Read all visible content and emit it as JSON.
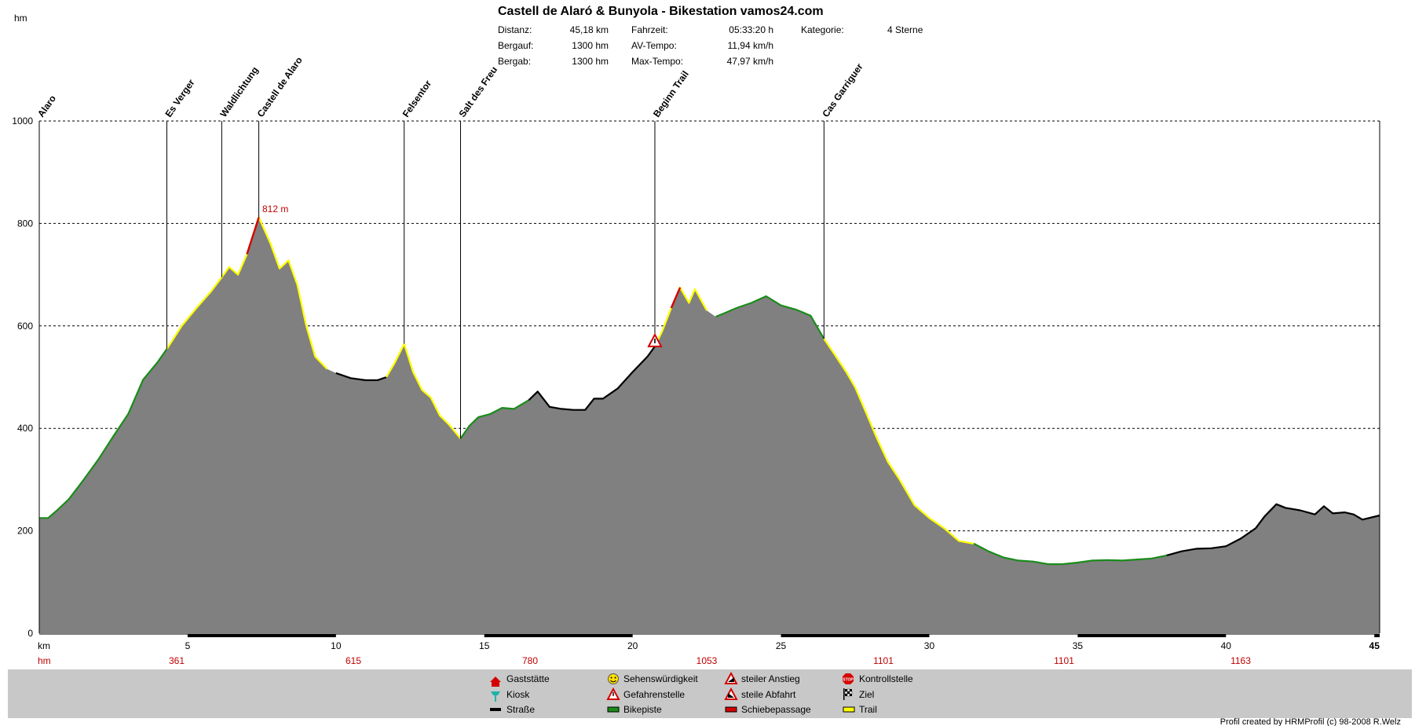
{
  "header": {
    "title": "Castell de Alaró & Bunyola - Bikestation vamos24.com",
    "y_unit": "hm",
    "x_unit": "km",
    "hm_row_label": "hm",
    "stats": [
      {
        "label": "Distanz:",
        "value": "45,18 km"
      },
      {
        "label": "Bergauf:",
        "value": "1300 hm"
      },
      {
        "label": "Bergab:",
        "value": "1300 hm"
      },
      {
        "label": "Fahrzeit:",
        "value": "05:33:20 h"
      },
      {
        "label": "AV-Tempo:",
        "value": "11,94 km/h"
      },
      {
        "label": "Max-Tempo:",
        "value": "47,97 km/h"
      },
      {
        "label": "Kategorie:",
        "value": "4 Sterne"
      }
    ]
  },
  "chart_data": {
    "type": "area",
    "xlabel": "km",
    "ylabel": "hm",
    "xlim": [
      0,
      45.18
    ],
    "ylim": [
      0,
      1000
    ],
    "grid": true,
    "yticks": [
      0,
      200,
      400,
      600,
      800,
      1000
    ],
    "xticks": [
      5,
      10,
      15,
      20,
      25,
      30,
      35,
      40,
      45
    ],
    "hm_per_5km": [
      "361",
      "615",
      "780",
      "1053",
      "1101",
      "1101",
      "1163"
    ],
    "max_label": "812 m",
    "max_point": {
      "x": 7.4,
      "y": 812
    },
    "waypoints": [
      {
        "name": "Alaro",
        "km": 0.0
      },
      {
        "name": "Es Verger",
        "km": 4.3
      },
      {
        "name": "Waldlichtung",
        "km": 6.15
      },
      {
        "name": "Castell de Alaro",
        "km": 7.4
      },
      {
        "name": "Felsentor",
        "km": 12.3
      },
      {
        "name": "Salt des Freu",
        "km": 14.2
      },
      {
        "name": "Beginn Trail",
        "km": 20.75
      },
      {
        "name": "Cas Garriguer",
        "km": 26.45
      }
    ],
    "profile": [
      [
        0,
        225
      ],
      [
        0.3,
        225
      ],
      [
        0.6,
        240
      ],
      [
        1.0,
        262
      ],
      [
        1.5,
        300
      ],
      [
        2.0,
        340
      ],
      [
        2.5,
        385
      ],
      [
        3.0,
        428
      ],
      [
        3.5,
        495
      ],
      [
        4.0,
        530
      ],
      [
        4.3,
        555
      ],
      [
        4.8,
        600
      ],
      [
        5.3,
        635
      ],
      [
        5.8,
        668
      ],
      [
        6.15,
        695
      ],
      [
        6.4,
        715
      ],
      [
        6.7,
        700
      ],
      [
        7.0,
        740
      ],
      [
        7.4,
        812
      ],
      [
        7.8,
        760
      ],
      [
        8.1,
        712
      ],
      [
        8.4,
        728
      ],
      [
        8.7,
        680
      ],
      [
        9.0,
        600
      ],
      [
        9.3,
        540
      ],
      [
        9.7,
        516
      ],
      [
        10.0,
        508
      ],
      [
        10.5,
        498
      ],
      [
        11.0,
        494
      ],
      [
        11.4,
        494
      ],
      [
        11.7,
        500
      ],
      [
        12.0,
        530
      ],
      [
        12.3,
        565
      ],
      [
        12.6,
        510
      ],
      [
        12.9,
        475
      ],
      [
        13.2,
        460
      ],
      [
        13.5,
        425
      ],
      [
        13.8,
        408
      ],
      [
        14.2,
        380
      ],
      [
        14.5,
        405
      ],
      [
        14.8,
        422
      ],
      [
        15.2,
        428
      ],
      [
        15.6,
        440
      ],
      [
        16.0,
        438
      ],
      [
        16.5,
        455
      ],
      [
        16.8,
        472
      ],
      [
        17.2,
        442
      ],
      [
        17.6,
        438
      ],
      [
        18.0,
        436
      ],
      [
        18.4,
        436
      ],
      [
        18.7,
        458
      ],
      [
        19.0,
        458
      ],
      [
        19.5,
        478
      ],
      [
        20.0,
        510
      ],
      [
        20.5,
        540
      ],
      [
        20.75,
        560
      ],
      [
        21.0,
        590
      ],
      [
        21.3,
        635
      ],
      [
        21.6,
        675
      ],
      [
        21.9,
        645
      ],
      [
        22.1,
        672
      ],
      [
        22.5,
        630
      ],
      [
        22.8,
        618
      ],
      [
        23.1,
        625
      ],
      [
        23.5,
        635
      ],
      [
        24.0,
        645
      ],
      [
        24.5,
        658
      ],
      [
        25.0,
        640
      ],
      [
        25.5,
        632
      ],
      [
        26.0,
        620
      ],
      [
        26.45,
        575
      ],
      [
        26.8,
        545
      ],
      [
        27.2,
        510
      ],
      [
        27.5,
        480
      ],
      [
        27.8,
        440
      ],
      [
        28.2,
        385
      ],
      [
        28.6,
        335
      ],
      [
        29.0,
        300
      ],
      [
        29.5,
        250
      ],
      [
        30.0,
        225
      ],
      [
        30.5,
        205
      ],
      [
        31.0,
        180
      ],
      [
        31.5,
        175
      ],
      [
        32.0,
        160
      ],
      [
        32.5,
        148
      ],
      [
        33.0,
        142
      ],
      [
        33.5,
        140
      ],
      [
        34.0,
        135
      ],
      [
        34.5,
        135
      ],
      [
        35.0,
        138
      ],
      [
        35.5,
        142
      ],
      [
        36.0,
        143
      ],
      [
        36.5,
        142
      ],
      [
        37.0,
        144
      ],
      [
        37.5,
        146
      ],
      [
        38.0,
        152
      ],
      [
        38.5,
        160
      ],
      [
        39.0,
        165
      ],
      [
        39.5,
        166
      ],
      [
        40.0,
        170
      ],
      [
        40.5,
        185
      ],
      [
        41.0,
        205
      ],
      [
        41.3,
        228
      ],
      [
        41.7,
        252
      ],
      [
        42.0,
        245
      ],
      [
        42.5,
        240
      ],
      [
        43.0,
        232
      ],
      [
        43.3,
        248
      ],
      [
        43.6,
        234
      ],
      [
        44.0,
        236
      ],
      [
        44.3,
        232
      ],
      [
        44.6,
        222
      ],
      [
        45.18,
        230
      ]
    ]
  },
  "legend": [
    {
      "label": "Gaststätte",
      "icon": "house-icon",
      "color": "#d40000"
    },
    {
      "label": "Kiosk",
      "icon": "kiosk-icon",
      "color": "#20b2aa"
    },
    {
      "label": "Straße",
      "icon": "road-swatch",
      "color": "#000000"
    },
    {
      "label": "Sehenswürdigkeit",
      "icon": "smiley-icon",
      "color": "#ffe000"
    },
    {
      "label": "Gefahrenstelle",
      "icon": "warning-triangle-icon",
      "color": "#d40000"
    },
    {
      "label": "Bikepiste",
      "icon": "bikepiste-swatch",
      "color": "#1a8c1a"
    },
    {
      "label": "steiler Anstieg",
      "icon": "steep-ascent-icon",
      "color": "#d40000"
    },
    {
      "label": "steile Abfahrt",
      "icon": "steep-descent-icon",
      "color": "#d40000"
    },
    {
      "label": "Schiebepassage",
      "icon": "push-swatch",
      "color": "#d40000"
    },
    {
      "label": "Kontrollstelle",
      "icon": "stop-icon",
      "color": "#d40000"
    },
    {
      "label": "Ziel",
      "icon": "finish-flag-icon",
      "color": "#000000"
    },
    {
      "label": "Trail",
      "icon": "trail-swatch",
      "color": "#ffff00"
    }
  ],
  "footer": "Profil created by HRMProfil (c) 98-2008 R.Welz"
}
